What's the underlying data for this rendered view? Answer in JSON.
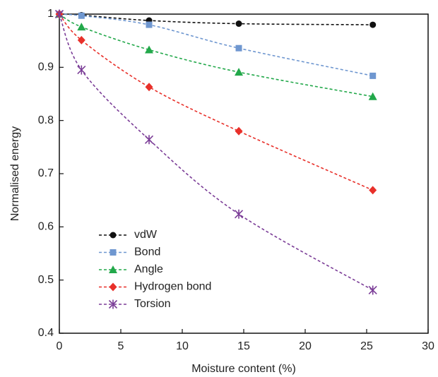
{
  "chart_data": {
    "type": "line",
    "x_label": "Moisture content (%)",
    "y_label": "Normalised energy",
    "x": [
      0,
      1.8,
      7.3,
      14.6,
      25.5
    ],
    "series": [
      {
        "name": "vdW",
        "color": "#111111",
        "marker": "circle",
        "values": [
          1,
          0.998,
          0.988,
          0.982,
          0.98
        ]
      },
      {
        "name": "Bond",
        "color": "#6f97d0",
        "marker": "square",
        "values": [
          1,
          0.997,
          0.98,
          0.936,
          0.884
        ]
      },
      {
        "name": "Angle",
        "color": "#22a84a",
        "marker": "triangle",
        "values": [
          1,
          0.976,
          0.933,
          0.891,
          0.845
        ]
      },
      {
        "name": "Hydrogen bond",
        "color": "#e8302a",
        "marker": "diamond",
        "values": [
          1,
          0.951,
          0.863,
          0.78,
          0.669
        ]
      },
      {
        "name": "Torsion",
        "color": "#7b3d97",
        "marker": "star",
        "values": [
          1,
          0.895,
          0.764,
          0.624,
          0.481
        ]
      }
    ],
    "xlim": [
      0,
      30
    ],
    "xticks": [
      0,
      5,
      10,
      15,
      20,
      25,
      30
    ],
    "ylim": [
      0.4,
      1
    ],
    "yticks": [
      0.4,
      0.5,
      0.6,
      0.7,
      0.8,
      0.9,
      1
    ],
    "grid": false,
    "legend": "lower-left"
  }
}
